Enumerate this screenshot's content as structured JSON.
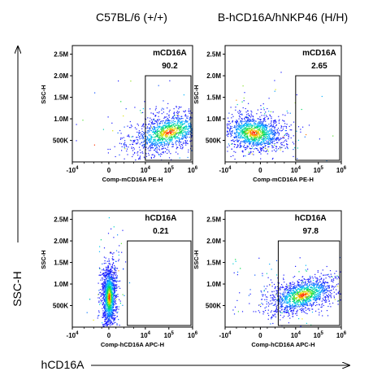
{
  "chart_data": {
    "type": "scatter",
    "group_labels": [
      "C57BL/6 (+/+)",
      "B-hCD16A/hNKP46 (H/H)"
    ],
    "overall_ylabel": "SSC-H",
    "overall_xlabel": "hCD16A",
    "y_ticks": [
      "2.5M",
      "2.0M",
      "1.5M",
      "1.0M",
      "500K"
    ],
    "x_ticks": [
      "-10^4",
      "0",
      "10^4",
      "10^5",
      "10^6"
    ],
    "panels": [
      {
        "id": "tl",
        "marker": "mCD16A",
        "percent": "90.2",
        "group": "C57BL/6 (+/+)",
        "xlabel": "Comp-mCD16A PE-H",
        "ylabel": "SSC-H",
        "gate": {
          "x": [
            10000,
            1000000
          ],
          "y": [
            0,
            2000000
          ]
        },
        "population": {
          "cx": 100000,
          "cy": 700000,
          "spread": "wide"
        }
      },
      {
        "id": "tr",
        "marker": "mCD16A",
        "percent": "2.65",
        "group": "B-hCD16A/hNKP46 (H/H)",
        "xlabel": "Comp-mCD16A PE-H",
        "ylabel": "SSC-H",
        "gate": {
          "x": [
            10000,
            1000000
          ],
          "y": [
            0,
            2000000
          ]
        },
        "population": {
          "cx": -300,
          "cy": 680000,
          "spread": "negative"
        }
      },
      {
        "id": "bl",
        "marker": "hCD16A",
        "percent": "0.21",
        "group": "C57BL/6 (+/+)",
        "xlabel": "Comp-hCD16A APC-H",
        "ylabel": "SSC-H",
        "gate": {
          "x": [
            1500,
            1000000
          ],
          "y": [
            0,
            2000000
          ]
        },
        "population": {
          "cx": 0,
          "cy": 700000,
          "spread": "narrow"
        }
      },
      {
        "id": "br",
        "marker": "hCD16A",
        "percent": "97.8",
        "group": "B-hCD16A/hNKP46 (H/H)",
        "xlabel": "Comp-hCD16A APC-H",
        "ylabel": "SSC-H",
        "gate": {
          "x": [
            1500,
            1000000
          ],
          "y": [
            0,
            2000000
          ]
        },
        "population": {
          "cx": 20000,
          "cy": 750000,
          "spread": "positive"
        }
      }
    ]
  },
  "colors": {
    "axis": "#000000",
    "gate": "#000000",
    "density_low": "#1a1aff",
    "density_high": "#ff2200"
  }
}
